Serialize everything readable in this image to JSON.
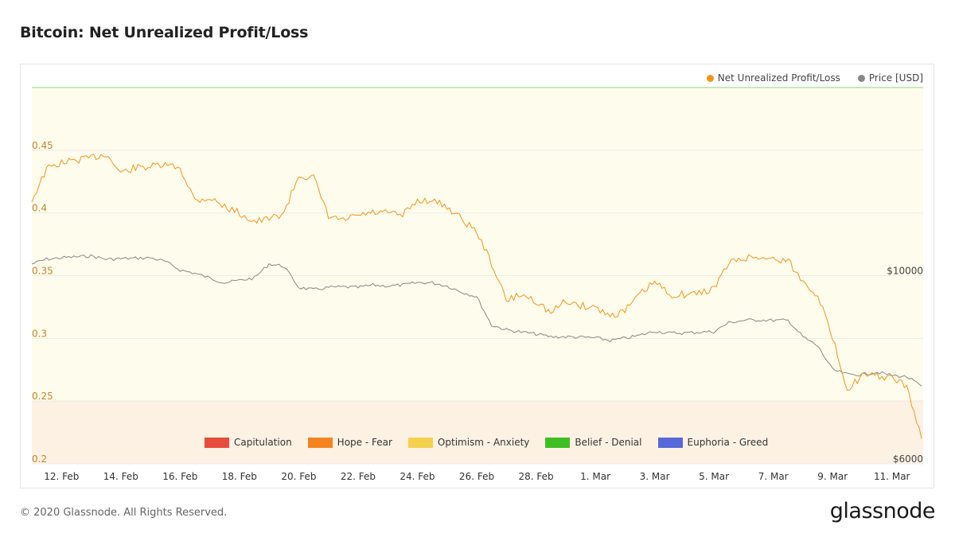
{
  "title": "Bitcoin: Net Unrealized Profit/Loss",
  "footer": "© 2020 Glassnode. All Rights Reserved.",
  "logo": "glassnode",
  "watermark": "glassnode",
  "legend": [
    {
      "label": "Net Unrealized Profit/Loss",
      "color": "#f7931a"
    },
    {
      "label": "Price [USD]",
      "color": "#888888"
    }
  ],
  "zones": [
    {
      "label": "Capitulation",
      "color": "#e74c3c"
    },
    {
      "label": "Hope - Fear",
      "color": "#f4841f"
    },
    {
      "label": "Optimism - Anxiety",
      "color": "#f5d04e"
    },
    {
      "label": "Belief - Denial",
      "color": "#3fbf24"
    },
    {
      "label": "Euphoria - Greed",
      "color": "#5868d8"
    }
  ],
  "chart_data": {
    "type": "line",
    "title": "Bitcoin: Net Unrealized Profit/Loss",
    "x_ticks": [
      "12. Feb",
      "14. Feb",
      "16. Feb",
      "18. Feb",
      "20. Feb",
      "22. Feb",
      "24. Feb",
      "26. Feb",
      "28. Feb",
      "1. Mar",
      "3. Mar",
      "5. Mar",
      "7. Mar",
      "9. Mar",
      "11. Mar"
    ],
    "y_left_ticks": [
      "0.2",
      "0.25",
      "0.3",
      "0.35",
      "0.4",
      "0.45"
    ],
    "y_right_ticks": [
      "$6000",
      "$10000"
    ],
    "ylim_left": [
      0.2,
      0.5
    ],
    "ylim_right": [
      6000,
      14000
    ],
    "zone_bands": [
      {
        "name": "Hope - Fear",
        "from": 0.0,
        "to": 0.25,
        "color": "#fdf1e4"
      },
      {
        "name": "Optimism - Anxiety",
        "from": 0.25,
        "to": 0.5,
        "color": "#fefcec"
      },
      {
        "name": "Belief - Denial",
        "from": 0.5,
        "to": 0.75,
        "color": "#8fd47e"
      }
    ],
    "x": [
      "2020-02-11",
      "2020-02-11T12",
      "2020-02-12",
      "2020-02-12T12",
      "2020-02-13",
      "2020-02-13T12",
      "2020-02-14",
      "2020-02-14T12",
      "2020-02-15",
      "2020-02-15T12",
      "2020-02-16",
      "2020-02-16T12",
      "2020-02-17",
      "2020-02-17T12",
      "2020-02-18",
      "2020-02-18T12",
      "2020-02-19",
      "2020-02-19T12",
      "2020-02-20",
      "2020-02-20T12",
      "2020-02-21",
      "2020-02-21T12",
      "2020-02-22",
      "2020-02-22T12",
      "2020-02-23",
      "2020-02-23T12",
      "2020-02-24",
      "2020-02-24T12",
      "2020-02-25",
      "2020-02-25T12",
      "2020-02-26",
      "2020-02-26T12",
      "2020-02-27",
      "2020-02-27T12",
      "2020-02-28",
      "2020-02-28T12",
      "2020-02-29",
      "2020-02-29T12",
      "2020-03-01",
      "2020-03-01T12",
      "2020-03-02",
      "2020-03-02T12",
      "2020-03-03",
      "2020-03-03T12",
      "2020-03-04",
      "2020-03-04T12",
      "2020-03-05",
      "2020-03-05T12",
      "2020-03-06",
      "2020-03-06T12",
      "2020-03-07",
      "2020-03-07T12",
      "2020-03-08",
      "2020-03-08T12",
      "2020-03-09",
      "2020-03-09T12",
      "2020-03-10",
      "2020-03-10T12",
      "2020-03-11",
      "2020-03-11T12",
      "2020-03-12"
    ],
    "series": [
      {
        "name": "Net Unrealized Profit/Loss",
        "color": "#f7931a",
        "axis": "left",
        "values": [
          0.41,
          0.435,
          0.44,
          0.442,
          0.444,
          0.447,
          0.432,
          0.436,
          0.437,
          0.438,
          0.436,
          0.41,
          0.412,
          0.405,
          0.4,
          0.393,
          0.395,
          0.4,
          0.43,
          0.428,
          0.397,
          0.394,
          0.398,
          0.4,
          0.4,
          0.398,
          0.41,
          0.41,
          0.405,
          0.395,
          0.385,
          0.36,
          0.33,
          0.335,
          0.33,
          0.32,
          0.33,
          0.326,
          0.325,
          0.318,
          0.322,
          0.335,
          0.345,
          0.335,
          0.335,
          0.336,
          0.34,
          0.36,
          0.364,
          0.365,
          0.363,
          0.362,
          0.345,
          0.335,
          0.3,
          0.26,
          0.27,
          0.27,
          0.268,
          0.262,
          0.22
        ]
      },
      {
        "name": "Price [USD]",
        "color": "#888888",
        "axis": "right",
        "values": [
          10250,
          10350,
          10380,
          10400,
          10420,
          10350,
          10360,
          10370,
          10380,
          10300,
          10120,
          10050,
          9950,
          9850,
          9900,
          9950,
          10250,
          10200,
          9750,
          9700,
          9750,
          9760,
          9750,
          9800,
          9780,
          9800,
          9850,
          9850,
          9780,
          9650,
          9550,
          8950,
          8850,
          8800,
          8760,
          8700,
          8700,
          8690,
          8680,
          8620,
          8670,
          8730,
          8820,
          8780,
          8780,
          8800,
          8810,
          9000,
          9050,
          9060,
          9050,
          9050,
          8700,
          8500,
          8000,
          7900,
          7900,
          7950,
          7880,
          7850,
          7650
        ]
      }
    ]
  }
}
